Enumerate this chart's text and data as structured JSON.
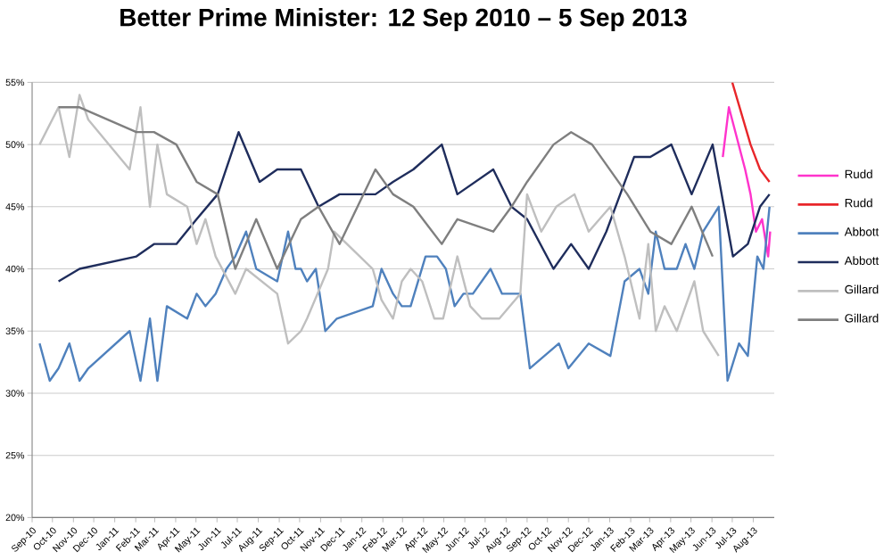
{
  "chart_data": {
    "type": "line",
    "title": "Better Prime Minister: 12 Sep 2010 – 5 Sep 2013",
    "xlim": [
      "2010-09-01",
      "2013-09-01"
    ],
    "xticks": [
      {
        "value": "2010-09-01",
        "label": "Sep-10"
      },
      {
        "value": "2010-10-01",
        "label": "Oct-10"
      },
      {
        "value": "2010-11-01",
        "label": "Nov-10"
      },
      {
        "value": "2010-12-01",
        "label": "Dec-10"
      },
      {
        "value": "2011-01-01",
        "label": "Jan-11"
      },
      {
        "value": "2011-02-01",
        "label": "Feb-11"
      },
      {
        "value": "2011-03-01",
        "label": "Mar-11"
      },
      {
        "value": "2011-04-01",
        "label": "Apr-11"
      },
      {
        "value": "2011-05-01",
        "label": "May-11"
      },
      {
        "value": "2011-06-01",
        "label": "Jun-11"
      },
      {
        "value": "2011-07-01",
        "label": "Jul-11"
      },
      {
        "value": "2011-08-01",
        "label": "Aug-11"
      },
      {
        "value": "2011-09-01",
        "label": "Sep-11"
      },
      {
        "value": "2011-10-01",
        "label": "Oct-11"
      },
      {
        "value": "2011-11-01",
        "label": "Nov-11"
      },
      {
        "value": "2011-12-01",
        "label": "Dec-11"
      },
      {
        "value": "2012-01-01",
        "label": "Jan-12"
      },
      {
        "value": "2012-02-01",
        "label": "Feb-12"
      },
      {
        "value": "2012-03-01",
        "label": "Mar-12"
      },
      {
        "value": "2012-04-01",
        "label": "Apr-12"
      },
      {
        "value": "2012-05-01",
        "label": "May-12"
      },
      {
        "value": "2012-06-01",
        "label": "Jun-12"
      },
      {
        "value": "2012-07-01",
        "label": "Jul-12"
      },
      {
        "value": "2012-08-01",
        "label": "Aug-12"
      },
      {
        "value": "2012-09-01",
        "label": "Sep-12"
      },
      {
        "value": "2012-10-01",
        "label": "Oct-12"
      },
      {
        "value": "2012-11-01",
        "label": "Nov-12"
      },
      {
        "value": "2012-12-01",
        "label": "Dec-12"
      },
      {
        "value": "2013-01-01",
        "label": "Jan-13"
      },
      {
        "value": "2013-02-01",
        "label": "Feb-13"
      },
      {
        "value": "2013-03-01",
        "label": "Mar-13"
      },
      {
        "value": "2013-04-01",
        "label": "Apr-13"
      },
      {
        "value": "2013-05-01",
        "label": "May-13"
      },
      {
        "value": "2013-06-01",
        "label": "Jun-13"
      },
      {
        "value": "2013-07-01",
        "label": "Jul-13"
      },
      {
        "value": "2013-08-01",
        "label": "Aug-13"
      }
    ],
    "ylim": [
      20,
      55
    ],
    "yticks": [
      {
        "value": 20,
        "label": "20%"
      },
      {
        "value": 25,
        "label": "25%"
      },
      {
        "value": 30,
        "label": "30%"
      },
      {
        "value": 35,
        "label": "35%"
      },
      {
        "value": 40,
        "label": "40%"
      },
      {
        "value": 45,
        "label": "45%"
      },
      {
        "value": 50,
        "label": "50%"
      },
      {
        "value": 55,
        "label": "55%"
      }
    ],
    "grid": "y",
    "legend": "right",
    "series": [
      {
        "name": "Rudd",
        "color": "#ff33cc",
        "x": [
          "2013-06-17",
          "2013-06-26",
          "2013-07-20",
          "2013-07-28",
          "2013-08-05",
          "2013-08-14",
          "2013-08-23",
          "2013-08-26"
        ],
        "values": [
          49,
          53,
          48,
          46,
          43,
          44,
          41,
          43
        ]
      },
      {
        "name": "Rudd",
        "color": "#e8262a",
        "x": [
          "2013-07-01",
          "2013-07-28",
          "2013-08-11",
          "2013-08-25"
        ],
        "values": [
          55,
          50,
          48,
          47
        ]
      },
      {
        "name": "Abbott",
        "color": "#4f81bd",
        "x": [
          "2010-09-12",
          "2010-09-27",
          "2010-10-10",
          "2010-10-26",
          "2010-11-10",
          "2010-11-23",
          "2011-01-23",
          "2011-02-08",
          "2011-02-22",
          "2011-03-05",
          "2011-03-19",
          "2011-04-18",
          "2011-05-02",
          "2011-05-15",
          "2011-05-30",
          "2011-06-15",
          "2011-06-28",
          "2011-07-14",
          "2011-07-29",
          "2011-08-29",
          "2011-09-14",
          "2011-09-25",
          "2011-10-03",
          "2011-10-12",
          "2011-10-25",
          "2011-11-08",
          "2011-11-25",
          "2012-01-17",
          "2012-01-30",
          "2012-02-16",
          "2012-02-29",
          "2012-03-13",
          "2012-04-04",
          "2012-04-21",
          "2012-05-04",
          "2012-05-17",
          "2012-05-30",
          "2012-06-13",
          "2012-07-09",
          "2012-07-26",
          "2012-08-22",
          "2012-09-05",
          "2012-10-18",
          "2012-11-01",
          "2012-12-01",
          "2013-01-02",
          "2013-01-23",
          "2013-02-14",
          "2013-02-27",
          "2013-03-10",
          "2013-03-23",
          "2013-04-10",
          "2013-04-23",
          "2013-05-06",
          "2013-05-19",
          "2013-06-11",
          "2013-06-24",
          "2013-07-11",
          "2013-07-24",
          "2013-08-07",
          "2013-08-16",
          "2013-08-25"
        ],
        "values": [
          34,
          31,
          32,
          34,
          31,
          32,
          35,
          31,
          36,
          31,
          37,
          36,
          38,
          37,
          38,
          40,
          41,
          43,
          40,
          39,
          43,
          40,
          40,
          39,
          40,
          35,
          36,
          37,
          40,
          38,
          37,
          37,
          41,
          41,
          40,
          37,
          38,
          38,
          40,
          38,
          38,
          32,
          34,
          32,
          34,
          33,
          39,
          40,
          38,
          43,
          40,
          40,
          42,
          40,
          43,
          45,
          31,
          34,
          33,
          41,
          40,
          45
        ]
      },
      {
        "name": "Abbott",
        "color": "#1f2d5c",
        "x": [
          "2010-10-10",
          "2010-11-10",
          "2011-02-02",
          "2011-02-28",
          "2011-04-02",
          "2011-05-02",
          "2011-06-02",
          "2011-07-03",
          "2011-08-03",
          "2011-08-29",
          "2011-10-03",
          "2011-10-29",
          "2011-11-29",
          "2012-01-21",
          "2012-02-16",
          "2012-03-17",
          "2012-04-28",
          "2012-05-21",
          "2012-07-13",
          "2012-08-09",
          "2012-09-01",
          "2012-10-10",
          "2012-11-05",
          "2012-12-01",
          "2012-12-27",
          "2013-02-06",
          "2013-03-02",
          "2013-04-02",
          "2013-05-02",
          "2013-06-02",
          "2013-07-02",
          "2013-07-24",
          "2013-08-11",
          "2013-08-25"
        ],
        "values": [
          39,
          40,
          41,
          42,
          42,
          44,
          46,
          51,
          47,
          48,
          48,
          45,
          46,
          46,
          47,
          48,
          50,
          46,
          48,
          45,
          44,
          40,
          42,
          40,
          43,
          49,
          49,
          50,
          46,
          50,
          41,
          42,
          45,
          46
        ]
      },
      {
        "name": "Gillard",
        "color": "#bfbfbf",
        "x": [
          "2010-09-12",
          "2010-10-10",
          "2010-10-26",
          "2010-11-10",
          "2010-11-23",
          "2011-01-23",
          "2011-02-08",
          "2011-02-22",
          "2011-03-05",
          "2011-03-19",
          "2011-04-18",
          "2011-05-02",
          "2011-05-15",
          "2011-05-30",
          "2011-06-28",
          "2011-07-14",
          "2011-08-29",
          "2011-09-14",
          "2011-10-03",
          "2011-10-12",
          "2011-11-12",
          "2011-11-21",
          "2012-01-17",
          "2012-01-30",
          "2012-02-16",
          "2012-02-29",
          "2012-03-13",
          "2012-03-30",
          "2012-04-17",
          "2012-04-30",
          "2012-05-21",
          "2012-06-09",
          "2012-06-26",
          "2012-07-22",
          "2012-08-22",
          "2012-09-01",
          "2012-09-22",
          "2012-10-14",
          "2012-11-10",
          "2012-12-01",
          "2013-01-02",
          "2013-01-23",
          "2013-02-14",
          "2013-02-27",
          "2013-03-10",
          "2013-03-23",
          "2013-04-10",
          "2013-05-06",
          "2013-05-19",
          "2013-06-11"
        ],
        "values": [
          50,
          53,
          49,
          54,
          52,
          48,
          53,
          45,
          50,
          46,
          45,
          42,
          44,
          41,
          38,
          40,
          38,
          34,
          35,
          36,
          40,
          43,
          40,
          37.5,
          36,
          39,
          40,
          39,
          36,
          36,
          41,
          37,
          36,
          36,
          38,
          46,
          43,
          45,
          46,
          43,
          45,
          41,
          36,
          42,
          35,
          37,
          35,
          39,
          35,
          33
        ]
      },
      {
        "name": "Gillard",
        "color": "#7f7f7f",
        "x": [
          "2010-10-10",
          "2010-11-10",
          "2011-02-02",
          "2011-02-28",
          "2011-04-02",
          "2011-05-02",
          "2011-06-02",
          "2011-06-28",
          "2011-07-29",
          "2011-08-29",
          "2011-10-03",
          "2011-10-29",
          "2011-11-29",
          "2012-01-21",
          "2012-02-16",
          "2012-03-17",
          "2012-04-28",
          "2012-05-21",
          "2012-07-13",
          "2012-08-09",
          "2012-09-01",
          "2012-10-10",
          "2012-11-05",
          "2012-12-06",
          "2013-01-27",
          "2013-03-02",
          "2013-04-02",
          "2013-05-02",
          "2013-06-02"
        ],
        "values": [
          53,
          53,
          51,
          51,
          50,
          47,
          46,
          40,
          44,
          40,
          44,
          45,
          42,
          48,
          46,
          45,
          42,
          44,
          43,
          45,
          47,
          50,
          51,
          50,
          46,
          43,
          42,
          45,
          41
        ]
      }
    ]
  }
}
